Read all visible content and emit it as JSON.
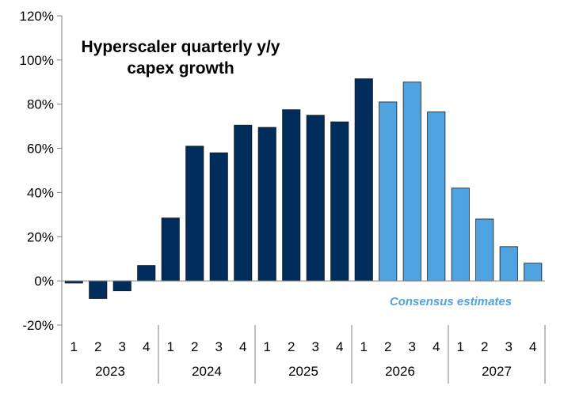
{
  "chart_data": {
    "type": "bar",
    "title_lines": [
      "Hyperscaler quarterly y/y",
      "capex growth"
    ],
    "annotation": "Consensus estimates",
    "ylim": [
      -20,
      120
    ],
    "yticks": [
      -20,
      0,
      20,
      40,
      60,
      80,
      100,
      120
    ],
    "ytick_labels": [
      "-20%",
      "0%",
      "20%",
      "40%",
      "60%",
      "80%",
      "100%",
      "120%"
    ],
    "grid": false,
    "colors": {
      "actual": "#002D5C",
      "estimate": "#4FA3E0",
      "annotation": "#4FA3E0",
      "axis": "#808080"
    },
    "groups": [
      {
        "year": "2023",
        "quarters": [
          "1",
          "2",
          "3",
          "4"
        ],
        "values": [
          -1,
          -8,
          -4.5,
          7
        ],
        "estimate": [
          false,
          false,
          false,
          false
        ]
      },
      {
        "year": "2024",
        "quarters": [
          "1",
          "2",
          "3",
          "4"
        ],
        "values": [
          28.5,
          61,
          58,
          70.5
        ],
        "estimate": [
          false,
          false,
          false,
          false
        ]
      },
      {
        "year": "2025",
        "quarters": [
          "1",
          "2",
          "3",
          "4"
        ],
        "values": [
          69.5,
          77.5,
          75,
          72
        ],
        "estimate": [
          false,
          false,
          false,
          false
        ]
      },
      {
        "year": "2026",
        "quarters": [
          "1",
          "2",
          "3",
          "4"
        ],
        "values": [
          91.5,
          81,
          90,
          76.5
        ],
        "estimate": [
          false,
          true,
          true,
          true
        ]
      },
      {
        "year": "2027",
        "quarters": [
          "1",
          "2",
          "3",
          "4"
        ],
        "values": [
          42,
          28,
          15.5,
          8
        ],
        "estimate": [
          true,
          true,
          true,
          true
        ]
      }
    ]
  }
}
